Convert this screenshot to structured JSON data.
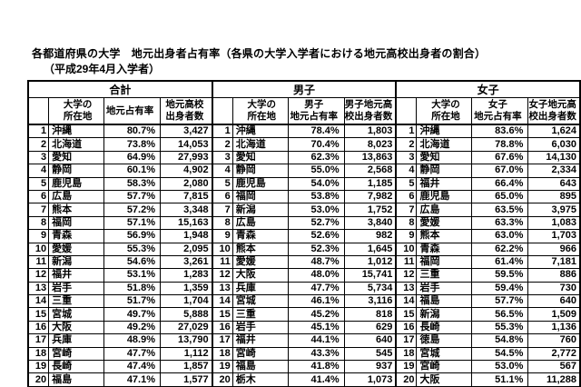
{
  "title": "各都道府県の大学　地元出身者占有率（各県の大学入学者における地元高校出身者の割合）",
  "subtitle": "（平成29年4月入学者）",
  "colors": {
    "text": "#000000",
    "border": "#000000",
    "background": "#ffffff"
  },
  "table": {
    "sections": [
      {
        "group": "合計",
        "columns": [
          "",
          "大学の\n所在地",
          "地元占有率",
          "地元高校\n出身者数"
        ],
        "rows": [
          [
            "1",
            "沖縄",
            "80.7%",
            "3,427"
          ],
          [
            "2",
            "北海道",
            "73.8%",
            "14,053"
          ],
          [
            "3",
            "愛知",
            "64.9%",
            "27,993"
          ],
          [
            "4",
            "静岡",
            "60.1%",
            "4,902"
          ],
          [
            "5",
            "鹿児島",
            "58.3%",
            "2,080"
          ],
          [
            "6",
            "広島",
            "57.7%",
            "7,815"
          ],
          [
            "7",
            "熊本",
            "57.2%",
            "3,348"
          ],
          [
            "8",
            "福岡",
            "57.1%",
            "15,163"
          ],
          [
            "9",
            "青森",
            "56.9%",
            "1,948"
          ],
          [
            "10",
            "愛媛",
            "55.3%",
            "2,095"
          ],
          [
            "11",
            "新潟",
            "54.6%",
            "3,261"
          ],
          [
            "12",
            "福井",
            "53.1%",
            "1,283"
          ],
          [
            "13",
            "岩手",
            "51.8%",
            "1,359"
          ],
          [
            "14",
            "三重",
            "51.7%",
            "1,704"
          ],
          [
            "15",
            "宮城",
            "49.7%",
            "5,888"
          ],
          [
            "16",
            "大阪",
            "49.2%",
            "27,029"
          ],
          [
            "17",
            "兵庫",
            "48.9%",
            "13,790"
          ],
          [
            "18",
            "宮崎",
            "47.7%",
            "1,112"
          ],
          [
            "19",
            "長崎",
            "47.4%",
            "1,857"
          ],
          [
            "20",
            "福島",
            "47.1%",
            "1,577"
          ]
        ]
      },
      {
        "group": "男子",
        "columns": [
          "",
          "大学の\n所在地",
          "男子\n地元占有率",
          "男子地元高\n校出身者数"
        ],
        "rows": [
          [
            "1",
            "沖縄",
            "78.4%",
            "1,803"
          ],
          [
            "2",
            "北海道",
            "70.4%",
            "8,023"
          ],
          [
            "3",
            "愛知",
            "62.3%",
            "13,863"
          ],
          [
            "4",
            "静岡",
            "55.0%",
            "2,568"
          ],
          [
            "5",
            "鹿児島",
            "54.0%",
            "1,185"
          ],
          [
            "6",
            "福岡",
            "53.8%",
            "7,982"
          ],
          [
            "7",
            "新潟",
            "53.0%",
            "1,752"
          ],
          [
            "8",
            "広島",
            "52.7%",
            "3,840"
          ],
          [
            "9",
            "青森",
            "52.6%",
            "982"
          ],
          [
            "10",
            "熊本",
            "52.3%",
            "1,645"
          ],
          [
            "11",
            "愛媛",
            "48.7%",
            "1,012"
          ],
          [
            "12",
            "大阪",
            "48.0%",
            "15,741"
          ],
          [
            "13",
            "兵庫",
            "47.7%",
            "5,734"
          ],
          [
            "14",
            "宮城",
            "46.1%",
            "3,116"
          ],
          [
            "15",
            "三重",
            "45.2%",
            "818"
          ],
          [
            "16",
            "岩手",
            "45.1%",
            "629"
          ],
          [
            "17",
            "福井",
            "44.1%",
            "640"
          ],
          [
            "18",
            "宮崎",
            "43.3%",
            "545"
          ],
          [
            "19",
            "福島",
            "41.8%",
            "937"
          ],
          [
            "20",
            "栃木",
            "41.4%",
            "1,073"
          ]
        ]
      },
      {
        "group": "女子",
        "columns": [
          "",
          "大学の\n所在地",
          "女子\n地元占有率",
          "女子地元高\n校出身者数"
        ],
        "rows": [
          [
            "1",
            "沖縄",
            "83.6%",
            "1,624"
          ],
          [
            "2",
            "北海道",
            "78.8%",
            "6,030"
          ],
          [
            "3",
            "愛知",
            "67.6%",
            "14,130"
          ],
          [
            "4",
            "静岡",
            "67.0%",
            "2,334"
          ],
          [
            "5",
            "福井",
            "66.4%",
            "643"
          ],
          [
            "6",
            "鹿児島",
            "65.0%",
            "895"
          ],
          [
            "7",
            "広島",
            "63.5%",
            "3,975"
          ],
          [
            "8",
            "愛媛",
            "63.3%",
            "1,083"
          ],
          [
            "9",
            "熊本",
            "63.0%",
            "1,703"
          ],
          [
            "10",
            "青森",
            "62.2%",
            "966"
          ],
          [
            "11",
            "福岡",
            "61.4%",
            "7,181"
          ],
          [
            "12",
            "三重",
            "59.5%",
            "886"
          ],
          [
            "13",
            "岩手",
            "59.4%",
            "730"
          ],
          [
            "14",
            "福島",
            "57.7%",
            "640"
          ],
          [
            "15",
            "新潟",
            "56.5%",
            "1,509"
          ],
          [
            "16",
            "長崎",
            "55.3%",
            "1,136"
          ],
          [
            "17",
            "徳島",
            "54.8%",
            "760"
          ],
          [
            "18",
            "宮城",
            "54.5%",
            "2,772"
          ],
          [
            "19",
            "宮崎",
            "53.0%",
            "567"
          ],
          [
            "20",
            "大阪",
            "51.1%",
            "11,288"
          ]
        ]
      }
    ]
  }
}
